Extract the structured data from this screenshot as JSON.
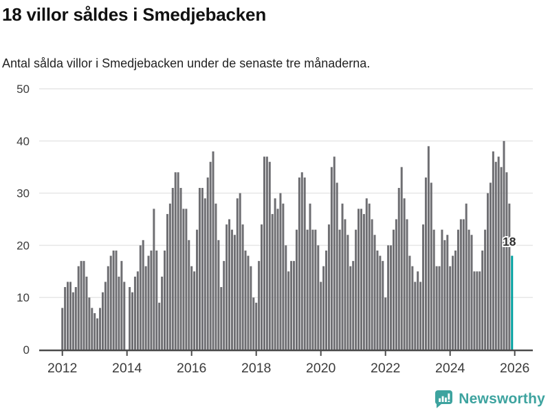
{
  "header": {
    "title": "18 villor såldes i Smedjebacken",
    "subtitle": "Antal sålda villor i Smedjebacken under de senaste tre månaderna."
  },
  "chart_data": {
    "type": "bar",
    "title": "18 villor såldes i Smedjebacken",
    "x_start": "2012-01",
    "frequency": "monthly",
    "unit": "sålda villor (rullande 3 månader)",
    "x_tick_labels": [
      "2012",
      "2014",
      "2016",
      "2018",
      "2020",
      "2022",
      "2024",
      "2026"
    ],
    "y_ticks": [
      0,
      10,
      20,
      30,
      40,
      50
    ],
    "ylim": [
      0,
      50
    ],
    "grid": "horizontal",
    "legend": "none",
    "bar_color": "#6E6E72",
    "highlight_color": "#00A0A0",
    "highlight_index": 167,
    "annotation": {
      "text": "18",
      "attached_to": "last-bar"
    },
    "values": [
      8,
      12,
      13,
      13,
      11,
      12,
      16,
      17,
      17,
      14,
      10,
      8,
      7,
      6,
      8,
      11,
      13,
      16,
      18,
      19,
      19,
      14,
      17,
      13,
      0,
      12,
      11,
      14,
      15,
      20,
      21,
      16,
      18,
      19,
      27,
      19,
      9,
      14,
      19,
      26,
      28,
      31,
      34,
      34,
      31,
      27,
      27,
      21,
      16,
      15,
      23,
      31,
      31,
      29,
      33,
      36,
      38,
      28,
      21,
      12,
      17,
      24,
      25,
      23,
      22,
      29,
      30,
      24,
      19,
      18,
      16,
      10,
      9,
      17,
      24,
      37,
      37,
      36,
      26,
      29,
      27,
      30,
      28,
      20,
      15,
      17,
      17,
      23,
      33,
      34,
      33,
      23,
      28,
      23,
      23,
      20,
      13,
      16,
      19,
      24,
      35,
      37,
      32,
      23,
      28,
      25,
      22,
      16,
      17,
      23,
      27,
      27,
      26,
      29,
      28,
      25,
      22,
      19,
      18,
      17,
      10,
      20,
      20,
      23,
      25,
      31,
      35,
      29,
      25,
      18,
      16,
      13,
      15,
      13,
      24,
      33,
      39,
      32,
      23,
      16,
      16,
      23,
      21,
      22,
      16,
      18,
      19,
      23,
      25,
      25,
      28,
      23,
      22,
      15,
      15,
      15,
      19,
      23,
      30,
      32,
      38,
      36,
      37,
      35,
      40,
      34,
      28,
      18
    ]
  },
  "footer": {
    "brand": "Newsworthy",
    "brand_color": "#3DA39F",
    "icon": "newsworthy-speech-bubble-bar-chart-icon"
  }
}
